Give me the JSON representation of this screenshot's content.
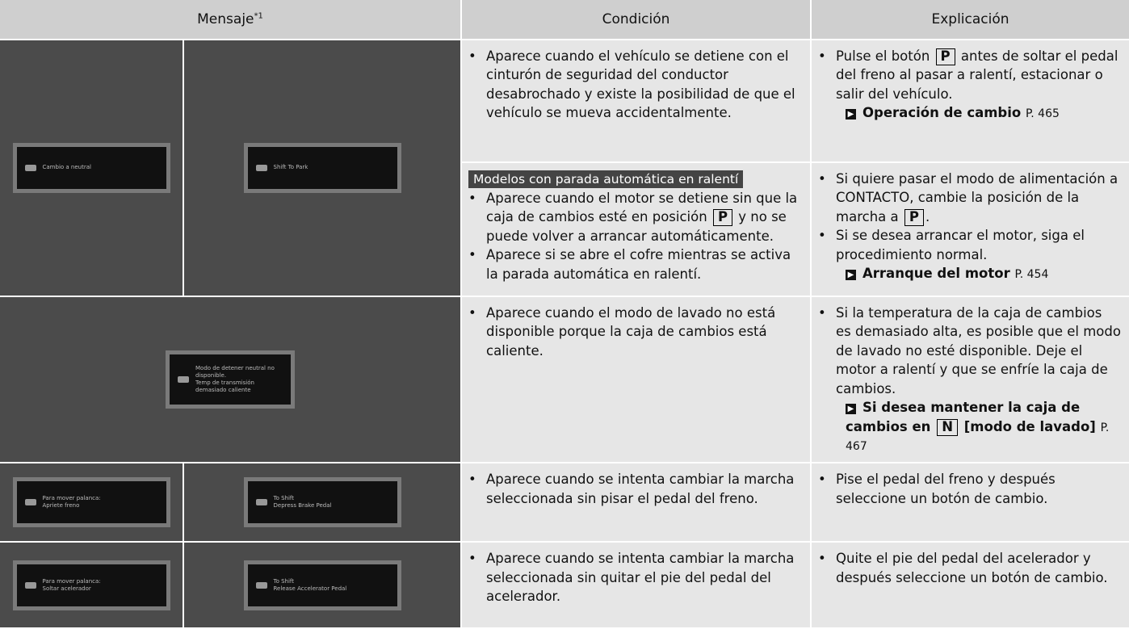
{
  "header": {
    "columns": [
      {
        "label": "Mensaje",
        "sup": "*1"
      },
      {
        "label": "Condición"
      },
      {
        "label": "Explicación"
      }
    ]
  },
  "rows": [
    {
      "screens": [
        {
          "lines": [
            "Cambio a neutral"
          ]
        },
        {
          "lines": [
            "Shift To Park"
          ]
        }
      ],
      "sections": [
        {
          "condition": [
            {
              "parts": [
                "Aparece cuando el vehículo se detiene con el cinturón de seguridad del conductor desabrochado y existe la posibilidad de que el vehículo se mueva accidentalmente."
              ]
            }
          ],
          "explanation": [
            {
              "parts": [
                "Pulse el botón ",
                {
                  "key": "P"
                },
                " antes de soltar el pedal del freno al pasar a ralentí, estacionar o salir del vehículo."
              ],
              "ref": {
                "parts": [
                  "Operación de cambio"
                ],
                "page": "P. 465"
              }
            }
          ]
        },
        {
          "tag": "Modelos con parada automática en ralentí",
          "condition": [
            {
              "parts": [
                "Aparece cuando el motor se detiene sin que la caja de cambios esté en posición ",
                {
                  "key": "P"
                },
                " y no se puede volver a arrancar automáticamente."
              ]
            },
            {
              "parts": [
                "Aparece si se abre el cofre mientras se activa la parada automática en ralentí."
              ]
            }
          ],
          "explanation": [
            {
              "parts": [
                "Si quiere pasar el modo de alimentación a CONTACTO, cambie la posición de la marcha a ",
                {
                  "key": "P"
                },
                "."
              ]
            },
            {
              "parts": [
                "Si se desea arrancar el motor, siga el procedimiento normal."
              ],
              "ref": {
                "parts": [
                  "Arranque del motor"
                ],
                "page": "P. 454"
              }
            }
          ]
        }
      ]
    },
    {
      "screens": [
        {
          "lines": [
            "Modo de detener neutral no disponible.",
            "Temp de transmisión",
            "demasiado caliente"
          ]
        }
      ],
      "sections": [
        {
          "condition": [
            {
              "parts": [
                "Aparece cuando el modo de lavado no está disponible porque la caja de cambios está caliente."
              ]
            }
          ],
          "explanation": [
            {
              "parts": [
                "Si la temperatura de la caja de cambios es demasiado alta, es posible que el modo de lavado no esté disponible. Deje el motor a ralentí y que se enfríe la caja de cambios."
              ],
              "ref": {
                "parts": [
                  "Si desea mantener la caja de cambios en ",
                  {
                    "key": "N"
                  },
                  " [modo de lavado]"
                ],
                "page": "P. 467"
              }
            }
          ]
        }
      ]
    },
    {
      "screens": [
        {
          "lines": [
            "Para mover palanca:",
            "Apriete freno"
          ]
        },
        {
          "lines": [
            "To Shift",
            "Depress Brake Pedal"
          ]
        }
      ],
      "sections": [
        {
          "condition": [
            {
              "parts": [
                "Aparece cuando se intenta cambiar la marcha seleccionada sin pisar el pedal del freno."
              ]
            }
          ],
          "explanation": [
            {
              "parts": [
                "Pise el pedal del freno y después seleccione un botón de cambio."
              ]
            }
          ]
        }
      ]
    },
    {
      "screens": [
        {
          "lines": [
            "Para mover palanca:",
            "Soltar acelerador"
          ]
        },
        {
          "lines": [
            "To Shift",
            "Release Accelerator Pedal"
          ]
        }
      ],
      "sections": [
        {
          "condition": [
            {
              "parts": [
                "Aparece cuando se intenta cambiar la marcha seleccionada sin quitar el pie del pedal del acelerador."
              ]
            }
          ],
          "explanation": [
            {
              "parts": [
                "Quite el pie del pedal del acelerador y después seleccione un botón de cambio."
              ]
            }
          ]
        }
      ]
    }
  ]
}
